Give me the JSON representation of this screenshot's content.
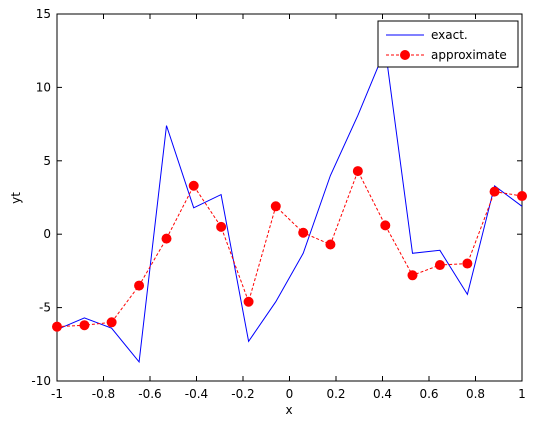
{
  "chart_data": {
    "type": "line",
    "title": "",
    "xlabel": "x",
    "ylabel": "yt",
    "xlim": [
      -1,
      1
    ],
    "ylim": [
      -10,
      15
    ],
    "grid": false,
    "legend_position": "top-right",
    "x_ticks": [
      -1,
      -0.8,
      -0.6,
      -0.4,
      -0.2,
      0,
      0.2,
      0.4,
      0.6,
      0.8,
      1
    ],
    "x_tick_labels": [
      "-1",
      "-0.8",
      "-0.6",
      "-0.4",
      "-0.2",
      "0",
      "0.2",
      "0.4",
      "0.6",
      "0.8",
      "1"
    ],
    "y_ticks": [
      -10,
      -5,
      0,
      5,
      10,
      15
    ],
    "y_tick_labels": [
      "-10",
      "-5",
      "0",
      "5",
      "10",
      "15"
    ],
    "series": [
      {
        "name": "exact.",
        "color": "#0000ff",
        "style": "solid",
        "marker": "none",
        "x": [
          -1,
          -0.882,
          -0.765,
          -0.647,
          -0.529,
          -0.412,
          -0.294,
          -0.176,
          -0.059,
          0.059,
          0.176,
          0.294,
          0.412,
          0.529,
          0.647,
          0.765,
          0.882,
          1
        ],
        "y": [
          -6.5,
          -5.7,
          -6.4,
          -8.7,
          7.4,
          1.8,
          2.7,
          -7.3,
          -4.6,
          -1.3,
          4.0,
          8.1,
          12.6,
          -1.3,
          -1.1,
          -4.1,
          3.3,
          1.9
        ]
      },
      {
        "name": "approximate",
        "color": "#ff0000",
        "style": "dashed",
        "marker": "circle",
        "x": [
          -1,
          -0.882,
          -0.765,
          -0.647,
          -0.529,
          -0.412,
          -0.294,
          -0.176,
          -0.059,
          0.059,
          0.176,
          0.294,
          0.412,
          0.529,
          0.647,
          0.765,
          0.882,
          1
        ],
        "y": [
          -6.3,
          -6.2,
          -6.0,
          -3.5,
          -0.3,
          3.3,
          0.5,
          -4.6,
          1.9,
          0.1,
          -0.7,
          4.3,
          0.6,
          -2.8,
          -2.1,
          -2.0,
          2.9,
          2.6
        ]
      }
    ]
  }
}
